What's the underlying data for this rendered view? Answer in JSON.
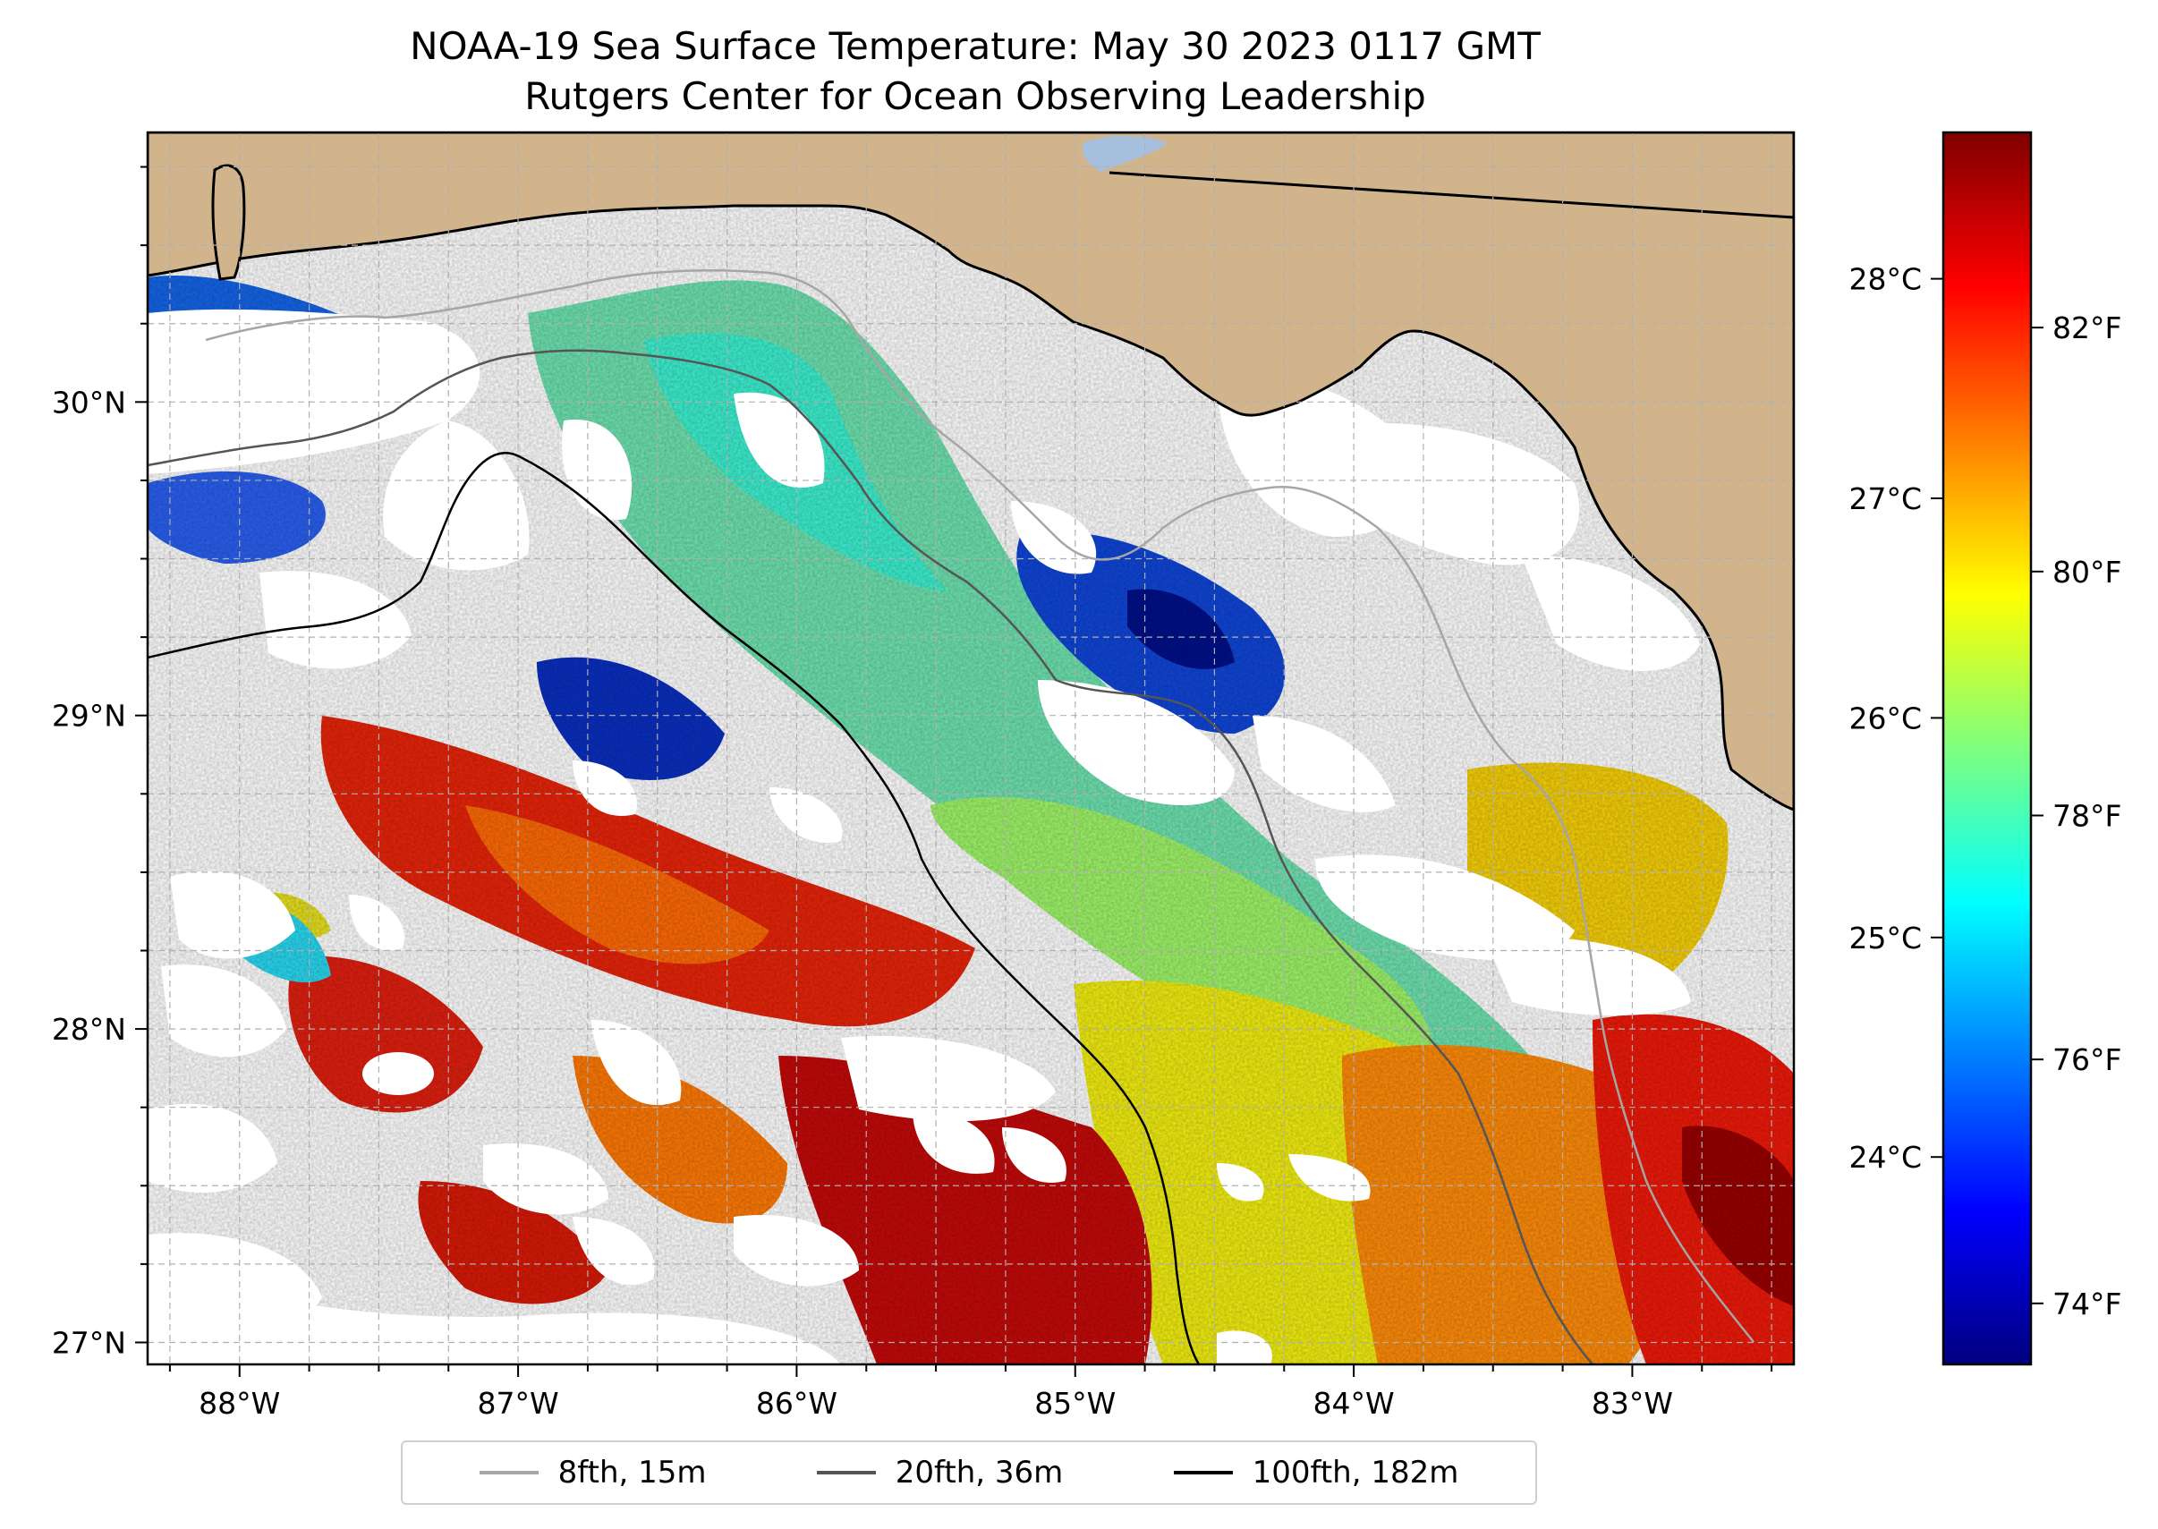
{
  "title": {
    "line1": "NOAA-19 Sea Surface Temperature: May 30 2023 0117 GMT",
    "line2": "Rutgers Center for Ocean Observing Leadership"
  },
  "map": {
    "lon_range": [
      -88.33,
      -82.42
    ],
    "lat_range": [
      26.93,
      30.86
    ],
    "colors": {
      "land": "#d2b48c",
      "cloud": "#ffffff",
      "lake": "#a5bfdd",
      "grid": "#b0b0b0"
    }
  },
  "axes": {
    "x_ticks": [
      {
        "lon": -88,
        "label": "88°W"
      },
      {
        "lon": -87,
        "label": "87°W"
      },
      {
        "lon": -86,
        "label": "86°W"
      },
      {
        "lon": -85,
        "label": "85°W"
      },
      {
        "lon": -84,
        "label": "84°W"
      },
      {
        "lon": -83,
        "label": "83°W"
      }
    ],
    "y_ticks": [
      {
        "lat": 27,
        "label": "27°N"
      },
      {
        "lat": 28,
        "label": "28°N"
      },
      {
        "lat": 29,
        "label": "29°N"
      },
      {
        "lat": 30,
        "label": "30°N"
      }
    ]
  },
  "colorbar": {
    "range_f": [
      73.5,
      83.6
    ],
    "colormap": [
      "#00007f",
      "#0000ff",
      "#007fff",
      "#00ffff",
      "#7fff7f",
      "#ffff00",
      "#ff7f00",
      "#ff0000",
      "#7f0000"
    ],
    "celsius_ticks": [
      {
        "value_c": 24,
        "label": "24°C"
      },
      {
        "value_c": 25,
        "label": "25°C"
      },
      {
        "value_c": 26,
        "label": "26°C"
      },
      {
        "value_c": 27,
        "label": "27°C"
      },
      {
        "value_c": 28,
        "label": "28°C"
      }
    ],
    "fahrenheit_ticks": [
      {
        "value_f": 74,
        "label": "74°F"
      },
      {
        "value_f": 76,
        "label": "76°F"
      },
      {
        "value_f": 78,
        "label": "78°F"
      },
      {
        "value_f": 80,
        "label": "80°F"
      },
      {
        "value_f": 82,
        "label": "82°F"
      }
    ]
  },
  "legend": {
    "items": [
      {
        "label": "8fth, 15m",
        "color": "#a6a6a6"
      },
      {
        "label": "20fth, 36m",
        "color": "#555555"
      },
      {
        "label": "100fth, 182m",
        "color": "#000000"
      }
    ]
  }
}
